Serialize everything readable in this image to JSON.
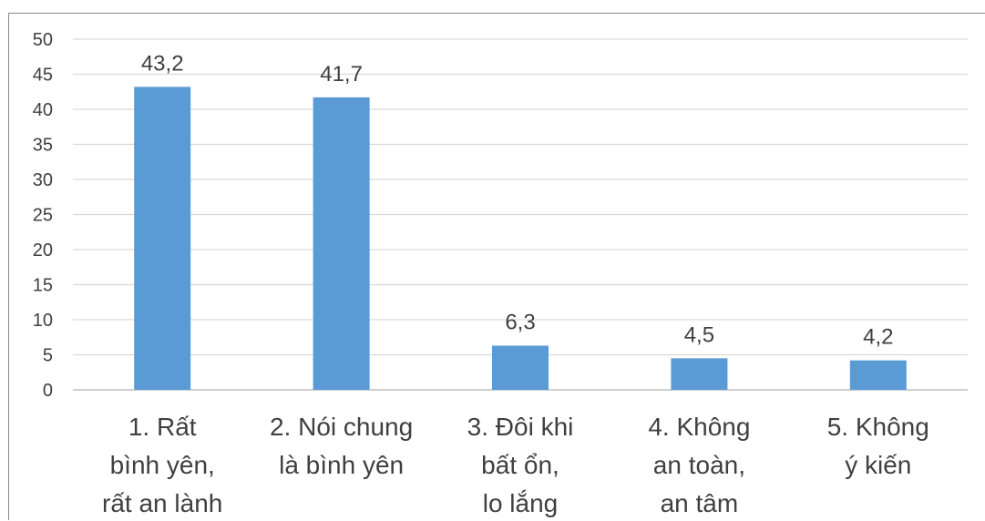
{
  "chart_data": {
    "type": "bar",
    "title": "",
    "xlabel": "",
    "ylabel": "",
    "ylim": [
      0,
      50
    ],
    "ytick_step": 5,
    "y_ticks": [
      "0",
      "5",
      "10",
      "15",
      "20",
      "25",
      "30",
      "35",
      "40",
      "45",
      "50"
    ],
    "grid": true,
    "legend": "none",
    "categories": [
      [
        "1. Rất",
        "bình yên,",
        "rất an lành"
      ],
      [
        "2. Nói chung",
        "là bình yên"
      ],
      [
        "3. Đôi khi",
        "bất ổn,",
        "lo lắng"
      ],
      [
        "4. Không",
        "an toàn,",
        "an tâm"
      ],
      [
        "5. Không",
        "ý kiến"
      ]
    ],
    "values": [
      43.2,
      41.7,
      6.3,
      4.5,
      4.2
    ],
    "data_labels": [
      "43,2",
      "41,7",
      "6,3",
      "4,5",
      "4,2"
    ],
    "colors": {
      "bar": "#5b9bd5",
      "grid": "#d9d9d9",
      "axis": "#bfbfbf",
      "text": "#404040"
    }
  }
}
